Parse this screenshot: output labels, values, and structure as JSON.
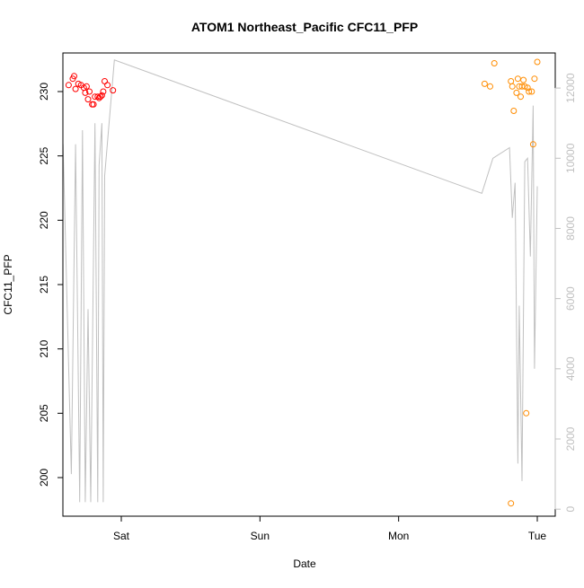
{
  "chart_data": {
    "type": "scatter",
    "title": "ATOM1 Northeast_Pacific CFC11_PFP",
    "xlabel": "Date",
    "ylabel": "CFC11_PFP",
    "x_ticks": [
      "Sat",
      "Sun",
      "Mon",
      "Tue"
    ],
    "y_ticks": [
      200,
      205,
      210,
      215,
      220,
      225,
      230
    ],
    "y2_ticks": [
      0,
      2000,
      4000,
      6000,
      8000,
      10000,
      12000
    ],
    "x_range_days": [
      -0.47,
      3.1
    ],
    "ylim": [
      197.0,
      233.0
    ],
    "y2lim": [
      -200,
      13000
    ],
    "grid": false,
    "colors": {
      "series_1": "#ff0000",
      "series_2": "#ff8c00",
      "altitude_line": "#c0c0c0",
      "axis": "#000000",
      "secondary_axis": "#c0c0c0"
    },
    "series": [
      {
        "color": "#ff0000",
        "marker": "open-circle",
        "points": [
          [
            -0.38,
            230.5
          ],
          [
            -0.35,
            231.0
          ],
          [
            -0.34,
            231.2
          ],
          [
            -0.33,
            230.2
          ],
          [
            -0.31,
            230.6
          ],
          [
            -0.29,
            230.5
          ],
          [
            -0.27,
            230.3
          ],
          [
            -0.26,
            229.9
          ],
          [
            -0.25,
            230.4
          ],
          [
            -0.24,
            229.4
          ],
          [
            -0.23,
            230.0
          ],
          [
            -0.21,
            229.0
          ],
          [
            -0.2,
            229.0
          ],
          [
            -0.19,
            229.6
          ],
          [
            -0.17,
            229.6
          ],
          [
            -0.16,
            229.5
          ],
          [
            -0.15,
            229.6
          ],
          [
            -0.14,
            229.7
          ],
          [
            -0.13,
            230.0
          ],
          [
            -0.12,
            230.8
          ],
          [
            -0.1,
            230.5
          ],
          [
            -0.06,
            230.1
          ]
        ]
      },
      {
        "color": "#ff8c00",
        "marker": "open-circle",
        "points": [
          [
            2.62,
            230.6
          ],
          [
            2.66,
            230.4
          ],
          [
            2.69,
            232.2
          ],
          [
            2.81,
            230.8
          ],
          [
            2.82,
            230.4
          ],
          [
            2.83,
            228.5
          ],
          [
            2.85,
            229.9
          ],
          [
            2.86,
            231.0
          ],
          [
            2.87,
            230.4
          ],
          [
            2.88,
            229.6
          ],
          [
            2.89,
            230.4
          ],
          [
            2.9,
            230.9
          ],
          [
            2.91,
            230.4
          ],
          [
            2.92,
            205.0
          ],
          [
            2.93,
            230.3
          ],
          [
            2.94,
            230.0
          ],
          [
            2.96,
            230.0
          ],
          [
            2.97,
            225.9
          ],
          [
            2.98,
            231.0
          ],
          [
            3.0,
            232.3
          ],
          [
            2.81,
            198.0
          ]
        ]
      }
    ],
    "secondary_line": {
      "name": "",
      "axis": "right",
      "points": [
        [
          -0.42,
          10400
        ],
        [
          -0.36,
          1000
        ],
        [
          -0.33,
          10400
        ],
        [
          -0.3,
          200
        ],
        [
          -0.28,
          10800
        ],
        [
          -0.26,
          200
        ],
        [
          -0.24,
          5700
        ],
        [
          -0.22,
          200
        ],
        [
          -0.19,
          11000
        ],
        [
          -0.17,
          200
        ],
        [
          -0.16,
          9800
        ],
        [
          -0.14,
          11000
        ],
        [
          -0.13,
          200
        ],
        [
          -0.12,
          9500
        ],
        [
          -0.05,
          12800
        ],
        [
          2.6,
          9000
        ],
        [
          2.68,
          10000
        ],
        [
          2.8,
          10300
        ],
        [
          2.82,
          8300
        ],
        [
          2.84,
          9300
        ],
        [
          2.86,
          1300
        ],
        [
          2.87,
          5800
        ],
        [
          2.89,
          800
        ],
        [
          2.91,
          9900
        ],
        [
          2.93,
          10000
        ],
        [
          2.95,
          7200
        ],
        [
          2.97,
          11500
        ],
        [
          2.98,
          4000
        ],
        [
          3.0,
          9200
        ]
      ]
    }
  }
}
